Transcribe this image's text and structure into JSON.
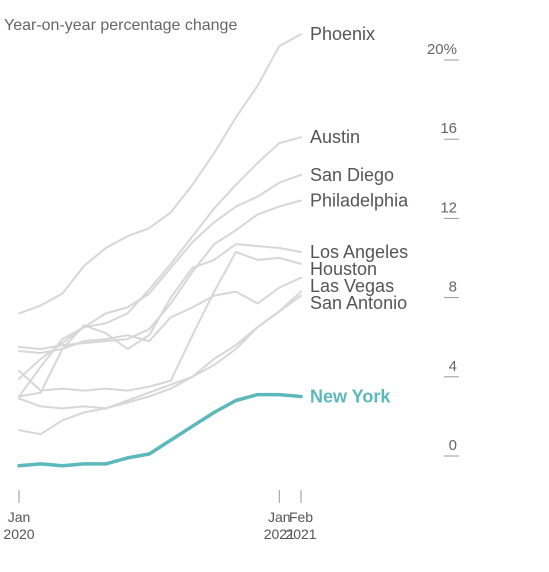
{
  "colors": {
    "background": "#ffffff",
    "highlight": "#5bb8bb",
    "other_lines": "#d7d7d7",
    "label_text": "#555555",
    "axis": "#999999"
  },
  "chart_data": {
    "type": "line",
    "subtitle": "Year-on-year percentage change",
    "x": [
      0,
      1,
      2,
      3,
      4,
      5,
      6,
      7,
      8,
      9,
      10,
      11,
      12,
      13
    ],
    "x_ticks": [
      {
        "x": 0,
        "line1": "Jan",
        "line2": "2020"
      },
      {
        "x": 12,
        "line1": "Jan",
        "line2": "2021"
      },
      {
        "x": 13,
        "line1": "Feb",
        "line2": "2021"
      }
    ],
    "y_ticks": [
      {
        "value": 0,
        "label": "0"
      },
      {
        "value": 4,
        "label": "4"
      },
      {
        "value": 8,
        "label": "8"
      },
      {
        "value": 12,
        "label": "12"
      },
      {
        "value": 16,
        "label": "16"
      },
      {
        "value": 20,
        "label": "20%"
      }
    ],
    "ylim": [
      0,
      20
    ],
    "grid": false,
    "series": [
      {
        "name": "Phoenix",
        "highlight": false,
        "values": [
          6.9,
          7.3,
          7.9,
          9.3,
          10.2,
          10.8,
          11.2,
          12.0,
          13.4,
          15.0,
          16.8,
          18.4,
          20.4,
          21.0
        ]
      },
      {
        "name": "Austin",
        "highlight": false,
        "values": [
          2.7,
          4.2,
          5.6,
          6.2,
          6.4,
          6.9,
          8.1,
          9.4,
          10.8,
          12.2,
          13.4,
          14.5,
          15.5,
          15.8
        ]
      },
      {
        "name": "San Diego",
        "highlight": false,
        "values": [
          3.6,
          4.6,
          5.4,
          6.2,
          6.9,
          7.2,
          7.9,
          9.2,
          10.5,
          11.5,
          12.3,
          12.8,
          13.5,
          13.9
        ]
      },
      {
        "name": "Philadelphia",
        "highlight": false,
        "values": [
          5.2,
          5.1,
          5.3,
          5.4,
          5.5,
          5.6,
          6.1,
          7.4,
          9.0,
          10.4,
          11.1,
          11.9,
          12.3,
          12.6
        ]
      },
      {
        "name": "Los Angeles",
        "highlight": false,
        "values": [
          2.7,
          2.9,
          5.1,
          6.3,
          5.9,
          5.1,
          5.8,
          7.7,
          9.2,
          9.6,
          10.4,
          10.3,
          10.2,
          10.0
        ]
      },
      {
        "name": "Houston",
        "highlight": false,
        "values": [
          4.0,
          3.0,
          3.1,
          3.0,
          3.1,
          3.0,
          3.2,
          3.5,
          5.8,
          8.0,
          10.0,
          9.6,
          9.7,
          9.4
        ]
      },
      {
        "name": "Las Vegas",
        "highlight": false,
        "values": [
          5.0,
          4.9,
          5.1,
          5.5,
          5.6,
          5.8,
          5.5,
          6.7,
          7.2,
          7.8,
          8.0,
          7.4,
          8.2,
          8.7
        ]
      },
      {
        "name": "San Antonio",
        "highlight": false,
        "values": [
          2.6,
          2.2,
          2.1,
          2.2,
          2.1,
          2.4,
          2.7,
          3.1,
          3.7,
          4.6,
          5.3,
          6.2,
          7.0,
          8.0
        ]
      },
      {
        "name": "",
        "highlight": false,
        "values": [
          1.0,
          0.8,
          1.5,
          1.9,
          2.1,
          2.5,
          2.9,
          3.3,
          3.7,
          4.3,
          5.1,
          6.2,
          7.0,
          7.8
        ]
      },
      {
        "name": "New York",
        "highlight": true,
        "values": [
          -0.8,
          -0.7,
          -0.8,
          -0.7,
          -0.7,
          -0.4,
          -0.2,
          0.5,
          1.2,
          1.9,
          2.5,
          2.8,
          2.8,
          2.7
        ]
      }
    ]
  }
}
